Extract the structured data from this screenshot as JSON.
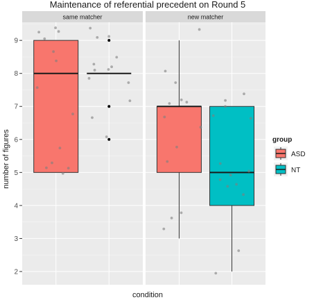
{
  "chart_data": {
    "type": "boxplot",
    "title": "Maintenance of referential precedent on Round 5",
    "xlabel": "condition",
    "ylabel": "number of figures",
    "ylim": [
      1.6,
      9.55
    ],
    "yticks": [
      2,
      3,
      4,
      5,
      6,
      7,
      8,
      9
    ],
    "grid": true,
    "legend": {
      "title": "group",
      "placement": "right",
      "entries": [
        {
          "label": "ASD",
          "color": "#F8766D"
        },
        {
          "label": "NT",
          "color": "#00BFC4"
        }
      ]
    },
    "facets": [
      {
        "label": "same matcher",
        "boxes": [
          {
            "group": "ASD",
            "min": 5,
            "q1": 5,
            "median": 8,
            "q3": 9,
            "max": 9,
            "outliers": []
          },
          {
            "group": "NT",
            "min": 8,
            "q1": 8,
            "median": 8,
            "q3": 8,
            "max": 8,
            "outliers": [
              9,
              7,
              6
            ]
          }
        ],
        "points": {
          "ASD": [
            9.38,
            9.27,
            9.25,
            9.05,
            8.66,
            8.38,
            7.57,
            6.77,
            5.74,
            5.29,
            5.14,
            5.13,
            4.97
          ],
          "NT": [
            9.37,
            9.12,
            9.09,
            8.49,
            8.28,
            8.2,
            8.12,
            8.1,
            7.85,
            7.72,
            7.17,
            6.66,
            6.08
          ]
        }
      },
      {
        "label": "new matcher",
        "boxes": [
          {
            "group": "ASD",
            "min": 3,
            "q1": 5,
            "median": 7,
            "q3": 7,
            "max": 9,
            "outliers": []
          },
          {
            "group": "NT",
            "min": 2,
            "q1": 4,
            "median": 5,
            "q3": 7,
            "max": 7,
            "outliers": []
          }
        ],
        "points": {
          "ASD": [
            9.33,
            8.07,
            7.72,
            7.2,
            7.13,
            7.09,
            6.68,
            6.37,
            5.77,
            5.33,
            3.78,
            3.62,
            3.29
          ],
          "NT": [
            7.38,
            7.18,
            7.0,
            6.72,
            6.64,
            5.27,
            5.04,
            4.92,
            4.78,
            4.64,
            4.58,
            4.33,
            2.63,
            1.95
          ]
        }
      }
    ]
  }
}
